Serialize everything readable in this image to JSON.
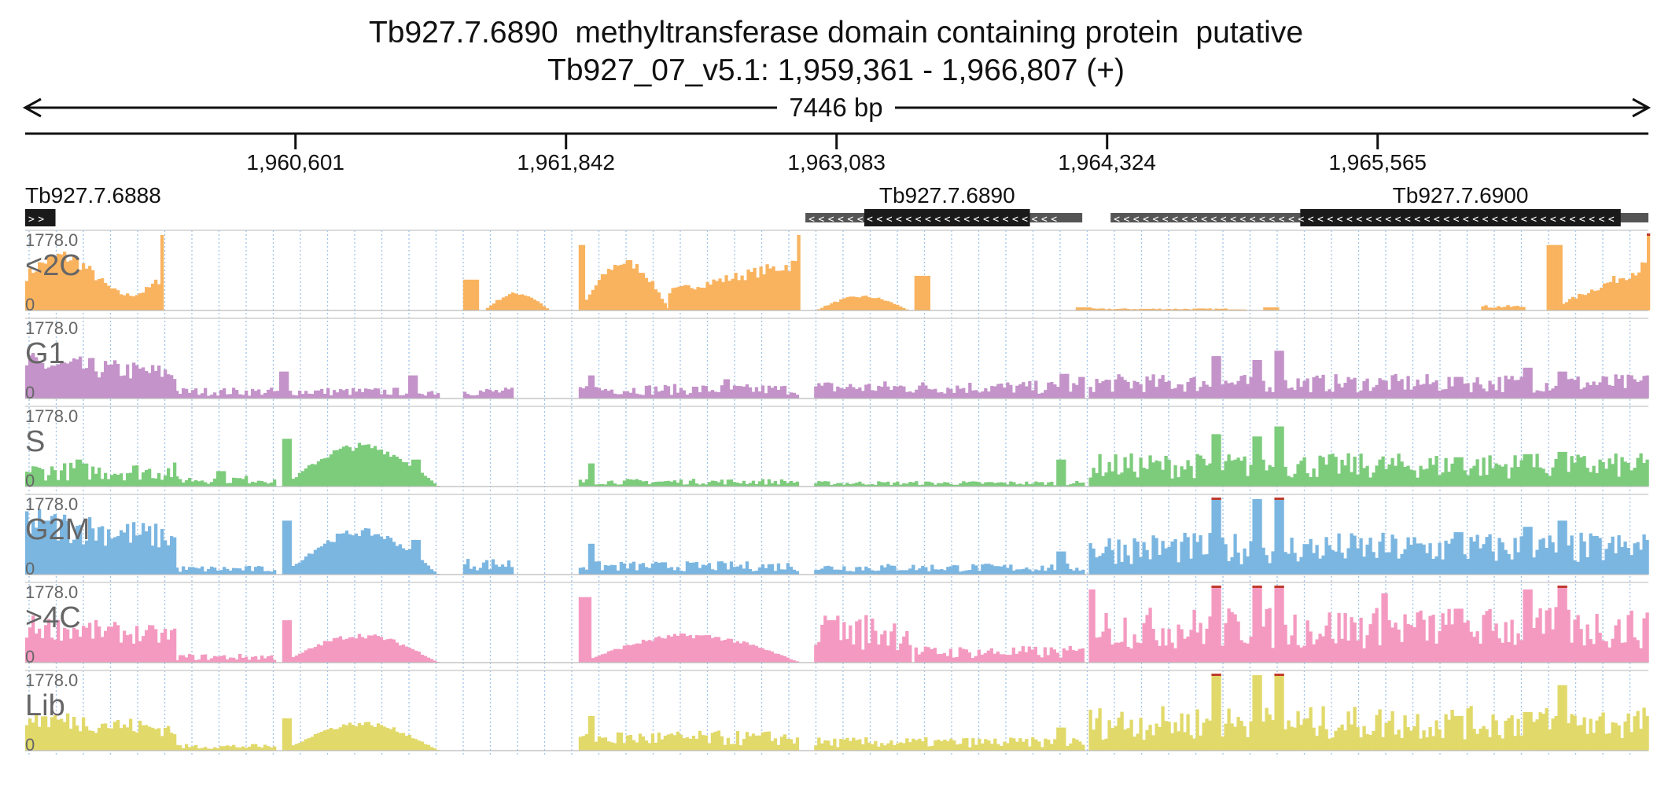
{
  "header": {
    "title": "Tb927.7.6890  methyltransferase domain containing protein  putative",
    "locus": "Tb927_07_v5.1: 1,959,361 - 1,966,807 (+)",
    "span_label": "7446 bp"
  },
  "chart_data": {
    "type": "area",
    "title": "Tb927.7.6890  methyltransferase domain containing protein  putative",
    "subtitle": "Tb927_07_v5.1: 1,959,361 - 1,966,807 (+)",
    "region": {
      "start": 1959361,
      "end": 1966807,
      "length_label": "7446 bp"
    },
    "x_ticks": [
      {
        "pos": 1960601,
        "label": "1,960,601"
      },
      {
        "pos": 1961842,
        "label": "1,961,842"
      },
      {
        "pos": 1963083,
        "label": "1,963,083"
      },
      {
        "pos": 1964324,
        "label": "1,964,324"
      },
      {
        "pos": 1965565,
        "label": "1,965,565"
      }
    ],
    "genes": [
      {
        "name": "Tb927.7.6888",
        "strand": "+",
        "start": 1959361,
        "end": 1959500,
        "cds_start": 1959361,
        "cds_end": 1959500,
        "label_anchor": "start"
      },
      {
        "name": "Tb927.7.6890",
        "strand": "-",
        "start": 1962940,
        "end": 1964210,
        "cds_start": 1963210,
        "cds_end": 1963970,
        "label_anchor": "middle"
      },
      {
        "name": "Tb927.7.6900",
        "strand": "-",
        "start": 1964340,
        "end": 1966807,
        "cds_start": 1965210,
        "cds_end": 1966680,
        "label_anchor": "middle"
      }
    ],
    "grid": "vertical-dotted",
    "tracks": [
      {
        "name": "<2C",
        "color": "#f9b35f",
        "ymax_label": "1778.0",
        "ymin_label": "0",
        "segments": [
          {
            "from": 1959361,
            "to": 1959990,
            "kind": "sawtooth",
            "base": 0.45,
            "amp": 0.25,
            "spike_at": 1959990,
            "spike": 0.98
          },
          {
            "from": 1961370,
            "to": 1961430,
            "kind": "block",
            "level": 0.4
          },
          {
            "from": 1961460,
            "to": 1961760,
            "kind": "hump",
            "level": 0.22
          },
          {
            "from": 1961900,
            "to": 1962310,
            "kind": "hump",
            "level": 0.62,
            "edge": 0.85
          },
          {
            "from": 1962310,
            "to": 1962910,
            "kind": "rise",
            "base": 0.25,
            "top": 0.62,
            "spike_at": 1962910,
            "spike": 0.98
          },
          {
            "from": 1962980,
            "to": 1963410,
            "kind": "hump",
            "level": 0.18
          },
          {
            "from": 1963440,
            "to": 1963500,
            "kind": "block",
            "level": 0.45
          },
          {
            "from": 1964180,
            "to": 1964240,
            "kind": "block",
            "level": 0.04
          },
          {
            "from": 1964240,
            "to": 1964950,
            "kind": "flat",
            "level": 0.02
          },
          {
            "from": 1965040,
            "to": 1965100,
            "kind": "block",
            "level": 0.04
          },
          {
            "from": 1966040,
            "to": 1966230,
            "kind": "flat",
            "level": 0.05
          },
          {
            "from": 1966340,
            "to": 1966400,
            "kind": "block",
            "level": 0.85
          },
          {
            "from": 1966410,
            "to": 1966807,
            "kind": "rise",
            "base": 0.1,
            "top": 0.6,
            "spike_at": 1966800,
            "spike": 1.0
          }
        ]
      },
      {
        "name": "G1",
        "color": "#c393c9",
        "ymax_label": "1778.0",
        "ymin_label": "0",
        "segments": [
          {
            "from": 1959361,
            "to": 1960050,
            "kind": "decay",
            "base": 0.38,
            "amp": 0.15
          },
          {
            "from": 1960050,
            "to": 1961250,
            "kind": "noisy",
            "level": 0.1,
            "peaks": [
              [
                1960540,
                0.35
              ],
              [
                1961130,
                0.3
              ]
            ]
          },
          {
            "from": 1961370,
            "to": 1961600,
            "kind": "noisy",
            "level": 0.1
          },
          {
            "from": 1961900,
            "to": 1962910,
            "kind": "noisy",
            "level": 0.13,
            "peaks": [
              [
                1961950,
                0.3
              ],
              [
                1962570,
                0.25
              ]
            ]
          },
          {
            "from": 1962980,
            "to": 1964210,
            "kind": "noisy",
            "level": 0.16,
            "peaks": [
              [
                1964120,
                0.32
              ],
              [
                1964210,
                0.28
              ]
            ]
          },
          {
            "from": 1964240,
            "to": 1966807,
            "kind": "noisy",
            "level": 0.22,
            "peaks": [
              [
                1964820,
                0.55
              ],
              [
                1965000,
                0.5
              ],
              [
                1965105,
                0.62
              ],
              [
                1965930,
                0.28
              ],
              [
                1966250,
                0.4
              ],
              [
                1966400,
                0.35
              ],
              [
                1966800,
                0.3
              ]
            ]
          }
        ]
      },
      {
        "name": "S",
        "color": "#7dcc7c",
        "ymax_label": "1778.0",
        "ymin_label": "0",
        "segments": [
          {
            "from": 1959361,
            "to": 1960050,
            "kind": "noisy",
            "level": 0.22,
            "peaks": [
              [
                1959600,
                0.35
              ]
            ]
          },
          {
            "from": 1960050,
            "to": 1960500,
            "kind": "noisy",
            "level": 0.1,
            "peaks": [
              [
                1960250,
                0.2
              ]
            ]
          },
          {
            "from": 1960540,
            "to": 1961250,
            "kind": "hump",
            "level": 0.52,
            "edge": 0.62,
            "peaks": [
              [
                1961150,
                0.35
              ]
            ]
          },
          {
            "from": 1961900,
            "to": 1962910,
            "kind": "noisy",
            "level": 0.07,
            "peaks": [
              [
                1961950,
                0.3
              ]
            ]
          },
          {
            "from": 1962980,
            "to": 1964210,
            "kind": "noisy",
            "level": 0.05,
            "peaks": [
              [
                1964110,
                0.35
              ]
            ]
          },
          {
            "from": 1964240,
            "to": 1966807,
            "kind": "noisy",
            "level": 0.3,
            "peaks": [
              [
                1964820,
                0.68
              ],
              [
                1965000,
                0.65
              ],
              [
                1965105,
                0.78
              ],
              [
                1965930,
                0.38
              ],
              [
                1966250,
                0.42
              ],
              [
                1966400,
                0.45
              ],
              [
                1966800,
                0.35
              ]
            ]
          }
        ]
      },
      {
        "name": "G2M",
        "color": "#7bb6e1",
        "ymax_label": "1778.0",
        "ymin_label": "0",
        "segments": [
          {
            "from": 1959361,
            "to": 1960050,
            "kind": "decay",
            "base": 0.55,
            "amp": 0.25,
            "peaks": [
              [
                1959450,
                0.7
              ]
            ]
          },
          {
            "from": 1960050,
            "to": 1960500,
            "kind": "noisy",
            "level": 0.08
          },
          {
            "from": 1960540,
            "to": 1961250,
            "kind": "hump",
            "level": 0.55,
            "edge": 0.7,
            "peaks": [
              [
                1961150,
                0.45
              ]
            ]
          },
          {
            "from": 1961370,
            "to": 1961600,
            "kind": "noisy",
            "level": 0.15
          },
          {
            "from": 1961900,
            "to": 1962910,
            "kind": "noisy",
            "level": 0.12,
            "peaks": [
              [
                1961950,
                0.4
              ]
            ]
          },
          {
            "from": 1962980,
            "to": 1964210,
            "kind": "noisy",
            "level": 0.1,
            "peaks": [
              [
                1964110,
                0.3
              ]
            ]
          },
          {
            "from": 1964240,
            "to": 1966807,
            "kind": "noisy",
            "level": 0.38,
            "peaks": [
              [
                1964820,
                1.0
              ],
              [
                1965000,
                0.98
              ],
              [
                1965105,
                1.0
              ],
              [
                1965930,
                0.55
              ],
              [
                1966250,
                0.62
              ],
              [
                1966400,
                0.7
              ],
              [
                1966800,
                0.45
              ]
            ]
          }
        ]
      },
      {
        "name": ">4C",
        "color": "#f49ac1",
        "ymax_label": "1778.0",
        "ymin_label": "0",
        "segments": [
          {
            "from": 1959361,
            "to": 1960050,
            "kind": "decay",
            "base": 0.4,
            "amp": 0.15
          },
          {
            "from": 1960050,
            "to": 1960500,
            "kind": "noisy",
            "level": 0.08
          },
          {
            "from": 1960540,
            "to": 1961250,
            "kind": "hump",
            "level": 0.35,
            "edge": 0.55
          },
          {
            "from": 1961900,
            "to": 1962910,
            "kind": "hump",
            "level": 0.35,
            "edge": 0.85
          },
          {
            "from": 1962980,
            "to": 1963420,
            "kind": "noisy",
            "level": 0.45,
            "peaks": [
              [
                1963050,
                0.55
              ]
            ]
          },
          {
            "from": 1963440,
            "to": 1964210,
            "kind": "noisy",
            "level": 0.15
          },
          {
            "from": 1964240,
            "to": 1966807,
            "kind": "noisy",
            "level": 0.5,
            "peaks": [
              [
                1964240,
                0.95
              ],
              [
                1964820,
                1.0
              ],
              [
                1965000,
                1.0
              ],
              [
                1965105,
                1.0
              ],
              [
                1965590,
                0.9
              ],
              [
                1965930,
                0.7
              ],
              [
                1966250,
                0.95
              ],
              [
                1966400,
                1.0
              ],
              [
                1966800,
                0.65
              ]
            ]
          }
        ]
      },
      {
        "name": "Lib",
        "color": "#e1d96a",
        "ymax_label": "1778.0",
        "ymin_label": "0",
        "segments": [
          {
            "from": 1959361,
            "to": 1960050,
            "kind": "decay",
            "base": 0.32,
            "amp": 0.18
          },
          {
            "from": 1960050,
            "to": 1960500,
            "kind": "noisy",
            "level": 0.06
          },
          {
            "from": 1960540,
            "to": 1961250,
            "kind": "hump",
            "level": 0.35,
            "edge": 0.42
          },
          {
            "from": 1961900,
            "to": 1962910,
            "kind": "noisy",
            "level": 0.18,
            "peaks": [
              [
                1961950,
                0.45
              ]
            ]
          },
          {
            "from": 1962980,
            "to": 1964210,
            "kind": "noisy",
            "level": 0.12,
            "peaks": [
              [
                1964110,
                0.3
              ]
            ]
          },
          {
            "from": 1964240,
            "to": 1966807,
            "kind": "noisy",
            "level": 0.4,
            "peaks": [
              [
                1964820,
                1.0
              ],
              [
                1965000,
                0.98
              ],
              [
                1965105,
                1.0
              ],
              [
                1965930,
                0.45
              ],
              [
                1966250,
                0.5
              ],
              [
                1966400,
                0.85
              ],
              [
                1966800,
                0.45
              ]
            ]
          }
        ]
      }
    ]
  }
}
